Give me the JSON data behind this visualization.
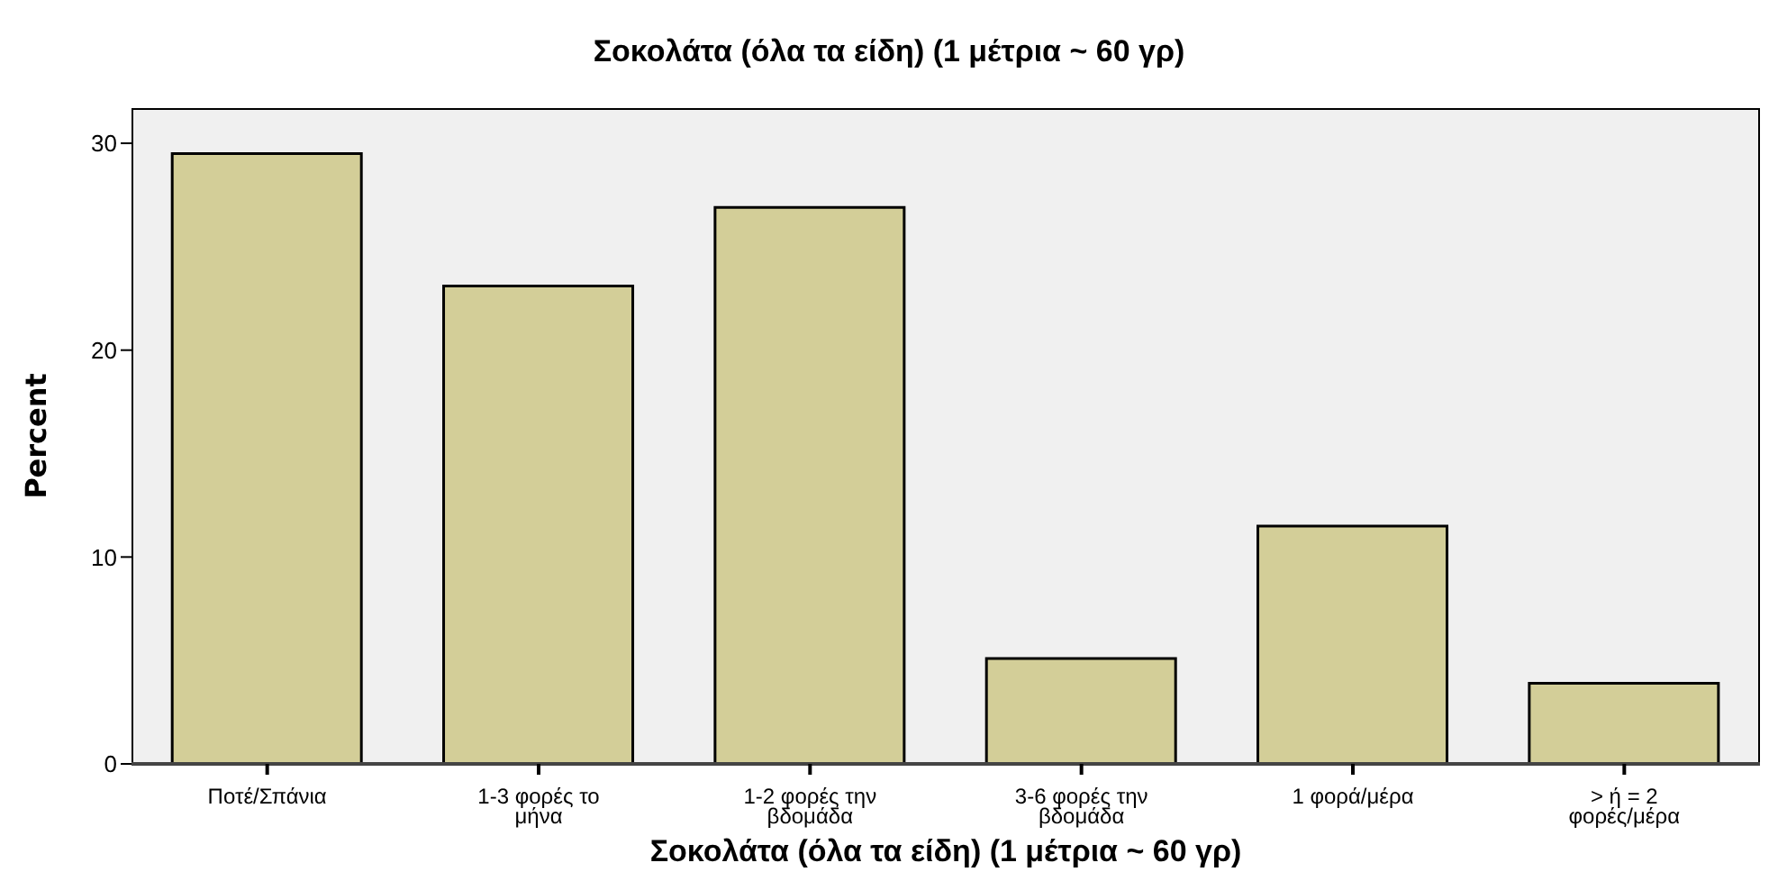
{
  "chart_data": {
    "type": "bar",
    "title": "Σοκολάτα (όλα τα είδη) (1 μέτρια ~ 60 γρ)",
    "xlabel": "Σοκολάτα (όλα τα είδη) (1 μέτρια ~ 60 γρ)",
    "ylabel": "Percent",
    "categories": [
      "Ποτέ/Σπάνια",
      "1-3 φορές το μήνα",
      "1-2 φορές την βδομάδα",
      "3-6 φορές την βδομάδα",
      "1 φορά/μέρα",
      "> ή = 2 φορές/μέρα"
    ],
    "values": [
      29.5,
      23.1,
      26.9,
      5.1,
      11.5,
      3.9
    ],
    "color": "#d3ce98",
    "ylim": [
      0,
      31.7
    ],
    "yticks": [
      0,
      10,
      20,
      30
    ],
    "grid": false
  }
}
